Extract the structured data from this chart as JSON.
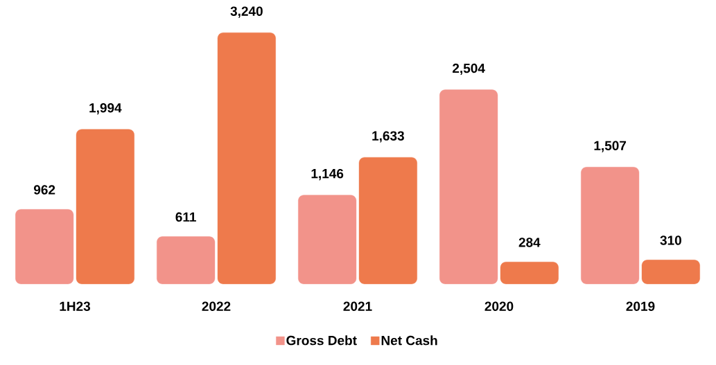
{
  "chart_data": {
    "type": "bar",
    "categories": [
      "1H23",
      "2022",
      "2021",
      "2020",
      "2019"
    ],
    "series": [
      {
        "name": "Gross Debt",
        "color": "#f2938a",
        "values": [
          962,
          611,
          1146,
          2504,
          1507
        ],
        "value_labels": [
          "962",
          "611",
          "1,146",
          "2,504",
          "1,507"
        ]
      },
      {
        "name": "Net Cash",
        "color": "#ee7a4c",
        "values": [
          1994,
          3240,
          1633,
          284,
          310
        ],
        "value_labels": [
          "1,994",
          "3,240",
          "1,633",
          "284",
          "310"
        ]
      }
    ],
    "legend": "bottom"
  }
}
